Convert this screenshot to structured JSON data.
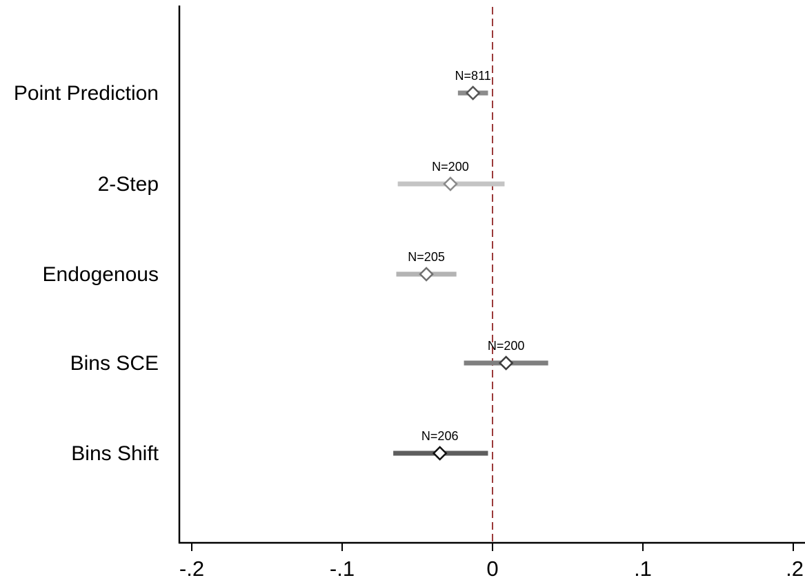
{
  "chart_data": {
    "type": "scatter",
    "subtype": "coefficient-plot",
    "title": "",
    "xlabel": "",
    "ylabel": "",
    "xlim": [
      -0.21,
      0.21
    ],
    "x_ticks": [
      -0.2,
      -0.1,
      0,
      0.1,
      0.2
    ],
    "x_tick_labels": [
      "-.2",
      "-.1",
      "0",
      ".1",
      ".2"
    ],
    "reference_line": {
      "x": 0,
      "style": "dashed",
      "color": "#9b3a3a"
    },
    "grid": false,
    "legend": "none",
    "series": [
      {
        "label": "Point Prediction",
        "estimate": -0.013,
        "ci_low": -0.023,
        "ci_high": -0.003,
        "n_label": "N=811",
        "bar_color": "#8c8c8c",
        "marker_stroke": "#555555"
      },
      {
        "label": "2-Step",
        "estimate": -0.028,
        "ci_low": -0.063,
        "ci_high": 0.008,
        "n_label": "N=200",
        "bar_color": "#c4c4c4",
        "marker_stroke": "#8a8a8a"
      },
      {
        "label": "Endogenous",
        "estimate": -0.044,
        "ci_low": -0.064,
        "ci_high": -0.024,
        "n_label": "N=205",
        "bar_color": "#b4b4b4",
        "marker_stroke": "#707070"
      },
      {
        "label": "Bins SCE",
        "estimate": 0.009,
        "ci_low": -0.019,
        "ci_high": 0.037,
        "n_label": "N=200",
        "bar_color": "#7f7f7f",
        "marker_stroke": "#3c3c3c"
      },
      {
        "label": "Bins Shift",
        "estimate": -0.035,
        "ci_low": -0.066,
        "ci_high": -0.003,
        "n_label": "N=206",
        "bar_color": "#5e5e5e",
        "marker_stroke": "#111111"
      }
    ]
  }
}
